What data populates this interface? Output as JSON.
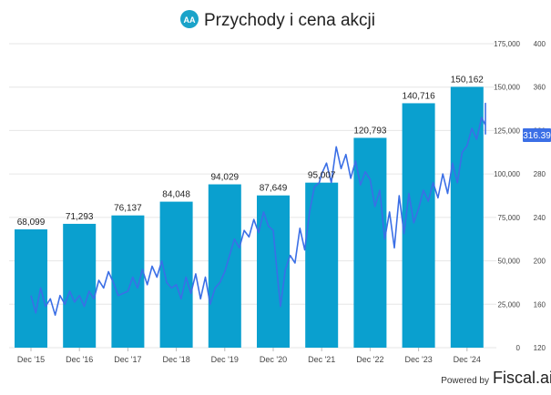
{
  "header": {
    "logo_text": "AA",
    "title": "Przychody i cena akcji"
  },
  "footer": {
    "powered_by": "Powered by",
    "brand": "Fiscal.ai"
  },
  "colors": {
    "bar": "#0aa0cf",
    "line": "#3b6fe6",
    "logo_bg": "#1aa3c9",
    "price_badge": "#3b6fe6",
    "grid": "#e6e6e6",
    "axis_text": "#444444"
  },
  "chart_data": {
    "type": "bar+line",
    "title": "Przychody i cena akcji",
    "categories": [
      "Dec '15",
      "Dec '16",
      "Dec '17",
      "Dec '18",
      "Dec '19",
      "Dec '20",
      "Dec '21",
      "Dec '22",
      "Dec '23",
      "Dec '24"
    ],
    "bar_series": {
      "name": "Przychody",
      "values": [
        68099,
        71293,
        76137,
        84048,
        94029,
        87649,
        95007,
        120793,
        140716,
        150162
      ],
      "labels": [
        "68,099",
        "71,293",
        "76,137",
        "84,048",
        "94,029",
        "87,649",
        "95,007",
        "120,793",
        "140,716",
        "150,162"
      ]
    },
    "left_axis": {
      "range": [
        0,
        175000
      ],
      "ticks": [
        "175,000",
        "150,000",
        "125,000",
        "100,000",
        "75,000",
        "50,000",
        "25,000",
        "0"
      ]
    },
    "right_axis": {
      "range": [
        120,
        400
      ],
      "ticks": [
        "400",
        "360",
        "320",
        "280",
        "240",
        "200",
        "160",
        "120"
      ]
    },
    "line_series": {
      "name": "Cena akcji",
      "last_value_label": "316.39",
      "points": [
        [
          2015.0,
          168
        ],
        [
          2015.1,
          152
        ],
        [
          2015.2,
          175
        ],
        [
          2015.3,
          158
        ],
        [
          2015.4,
          165
        ],
        [
          2015.5,
          150
        ],
        [
          2015.6,
          168
        ],
        [
          2015.7,
          160
        ],
        [
          2015.8,
          172
        ],
        [
          2015.9,
          162
        ],
        [
          2016.0,
          168
        ],
        [
          2016.1,
          158
        ],
        [
          2016.2,
          172
        ],
        [
          2016.3,
          165
        ],
        [
          2016.4,
          182
        ],
        [
          2016.5,
          175
        ],
        [
          2016.6,
          190
        ],
        [
          2016.7,
          180
        ],
        [
          2016.8,
          168
        ],
        [
          2016.9,
          170
        ],
        [
          2017.0,
          172
        ],
        [
          2017.1,
          185
        ],
        [
          2017.2,
          175
        ],
        [
          2017.3,
          192
        ],
        [
          2017.4,
          178
        ],
        [
          2017.5,
          195
        ],
        [
          2017.6,
          185
        ],
        [
          2017.7,
          200
        ],
        [
          2017.8,
          180
        ],
        [
          2017.9,
          175
        ],
        [
          2018.0,
          178
        ],
        [
          2018.1,
          165
        ],
        [
          2018.2,
          185
        ],
        [
          2018.3,
          170
        ],
        [
          2018.4,
          188
        ],
        [
          2018.5,
          165
        ],
        [
          2018.6,
          185
        ],
        [
          2018.7,
          160
        ],
        [
          2018.8,
          175
        ],
        [
          2018.9,
          180
        ],
        [
          2019.0,
          190
        ],
        [
          2019.1,
          205
        ],
        [
          2019.2,
          220
        ],
        [
          2019.3,
          212
        ],
        [
          2019.4,
          228
        ],
        [
          2019.5,
          222
        ],
        [
          2019.6,
          238
        ],
        [
          2019.7,
          226
        ],
        [
          2019.8,
          245
        ],
        [
          2019.9,
          232
        ],
        [
          2020.0,
          228
        ],
        [
          2020.1,
          180
        ],
        [
          2020.15,
          158
        ],
        [
          2020.25,
          192
        ],
        [
          2020.35,
          205
        ],
        [
          2020.45,
          198
        ],
        [
          2020.55,
          230
        ],
        [
          2020.65,
          210
        ],
        [
          2020.75,
          245
        ],
        [
          2020.85,
          268
        ],
        [
          2020.95,
          272
        ],
        [
          2021.0,
          280
        ],
        [
          2021.1,
          290
        ],
        [
          2021.2,
          272
        ],
        [
          2021.3,
          305
        ],
        [
          2021.4,
          285
        ],
        [
          2021.5,
          298
        ],
        [
          2021.6,
          276
        ],
        [
          2021.7,
          292
        ],
        [
          2021.8,
          270
        ],
        [
          2021.9,
          282
        ],
        [
          2022.0,
          275
        ],
        [
          2022.1,
          250
        ],
        [
          2022.2,
          265
        ],
        [
          2022.3,
          220
        ],
        [
          2022.4,
          245
        ],
        [
          2022.5,
          212
        ],
        [
          2022.6,
          260
        ],
        [
          2022.7,
          225
        ],
        [
          2022.8,
          262
        ],
        [
          2022.9,
          235
        ],
        [
          2023.0,
          248
        ],
        [
          2023.1,
          265
        ],
        [
          2023.2,
          255
        ],
        [
          2023.3,
          272
        ],
        [
          2023.4,
          258
        ],
        [
          2023.5,
          280
        ],
        [
          2023.6,
          262
        ],
        [
          2023.7,
          290
        ],
        [
          2023.8,
          272
        ],
        [
          2023.9,
          300
        ],
        [
          2024.0,
          306
        ],
        [
          2024.1,
          322
        ],
        [
          2024.2,
          312
        ],
        [
          2024.3,
          332
        ],
        [
          2024.4,
          325
        ],
        [
          2024.5,
          345
        ],
        [
          2024.6,
          340
        ],
        [
          2024.7,
          338
        ],
        [
          2024.8,
          328
        ],
        [
          2024.9,
          316.39
        ]
      ]
    }
  }
}
